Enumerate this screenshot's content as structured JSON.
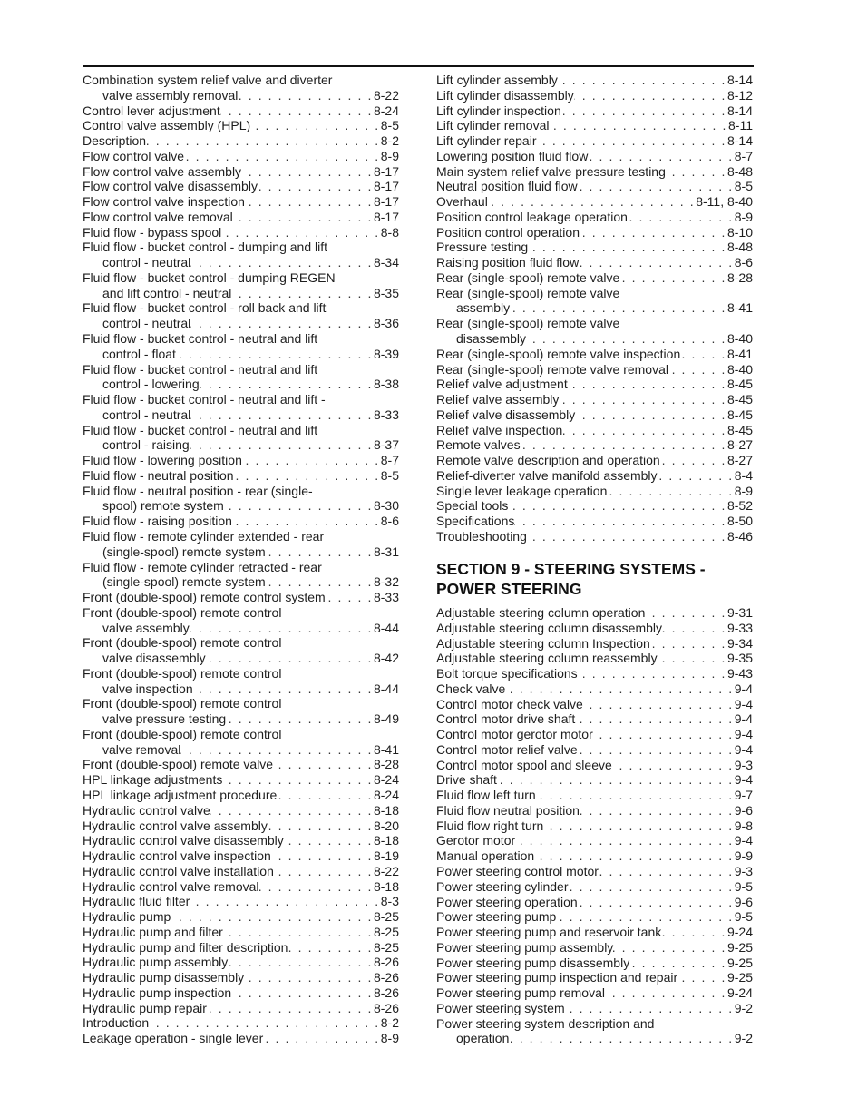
{
  "left": [
    {
      "text": "Combination system relief valve and diverter",
      "cont": "valve assembly removal",
      "page": "8-22"
    },
    {
      "text": "Control lever adjustment",
      "page": "8-24"
    },
    {
      "text": "Control valve assembly (HPL)",
      "page": "8-5"
    },
    {
      "text": "Description",
      "page": "8-2"
    },
    {
      "text": "Flow control valve",
      "page": "8-9"
    },
    {
      "text": "Flow control valve assembly",
      "page": "8-17"
    },
    {
      "text": "Flow control valve disassembly",
      "page": "8-17"
    },
    {
      "text": "Flow control valve inspection",
      "page": "8-17"
    },
    {
      "text": "Flow control valve removal",
      "page": "8-17"
    },
    {
      "text": "Fluid flow - bypass spool",
      "page": "8-8"
    },
    {
      "text": "Fluid flow - bucket control - dumping and lift",
      "cont": "control - neutral",
      "page": "8-34"
    },
    {
      "text": "Fluid flow - bucket control - dumping REGEN",
      "cont": "and lift control - neutral",
      "page": "8-35"
    },
    {
      "text": "Fluid flow - bucket control - roll back and lift",
      "cont": "control - neutral",
      "page": "8-36"
    },
    {
      "text": "Fluid flow - bucket control - neutral and lift",
      "cont": "control - float",
      "page": "8-39"
    },
    {
      "text": "Fluid flow - bucket control - neutral and lift",
      "cont": "control - lowering",
      "page": "8-38"
    },
    {
      "text": "Fluid flow - bucket control - neutral and lift -",
      "cont": "control - neutral",
      "page": "8-33"
    },
    {
      "text": "Fluid flow - bucket control - neutral and lift",
      "cont": "control - raising",
      "page": "8-37"
    },
    {
      "text": "Fluid flow - lowering position",
      "page": "8-7"
    },
    {
      "text": "Fluid flow - neutral position",
      "page": "8-5"
    },
    {
      "text": "Fluid flow - neutral position - rear (single-",
      "cont": "spool) remote system",
      "page": "8-30"
    },
    {
      "text": "Fluid flow - raising position",
      "page": "8-6"
    },
    {
      "text": "Fluid flow - remote cylinder extended - rear",
      "cont": "(single-spool) remote system",
      "page": "8-31"
    },
    {
      "text": "Fluid flow - remote cylinder retracted - rear",
      "cont": "(single-spool) remote system",
      "page": "8-32"
    },
    {
      "text": "Front (double-spool) remote control system",
      "page": "8-33"
    },
    {
      "text": "Front (double-spool) remote control",
      "cont": "valve assembly",
      "page": "8-44"
    },
    {
      "text": "Front (double-spool) remote control",
      "cont": "valve disassembly",
      "page": "8-42"
    },
    {
      "text": "Front (double-spool) remote control",
      "cont": "valve inspection",
      "page": "8-44"
    },
    {
      "text": "Front (double-spool) remote control",
      "cont": "valve pressure testing",
      "page": "8-49"
    },
    {
      "text": "Front (double-spool) remote control",
      "cont": "valve removal",
      "page": "8-41"
    },
    {
      "text": "Front (double-spool) remote valve",
      "page": "8-28"
    },
    {
      "text": "HPL linkage adjustments",
      "page": "8-24"
    },
    {
      "text": "HPL linkage adjustment procedure",
      "page": "8-24"
    },
    {
      "text": "Hydraulic control valve",
      "page": "8-18"
    },
    {
      "text": "Hydraulic control valve assembly",
      "page": "8-20"
    },
    {
      "text": "Hydraulic control valve disassembly",
      "page": "8-18"
    },
    {
      "text": "Hydraulic control valve inspection",
      "page": "8-19"
    },
    {
      "text": "Hydraulic control valve installation",
      "page": "8-22"
    },
    {
      "text": "Hydraulic control valve removal",
      "page": "8-18"
    },
    {
      "text": "Hydraulic fluid filter",
      "page": "8-3"
    },
    {
      "text": "Hydraulic pump",
      "page": "8-25"
    },
    {
      "text": "Hydraulic pump and filter",
      "page": "8-25"
    },
    {
      "text": "Hydraulic pump and filter description",
      "page": "8-25"
    },
    {
      "text": "Hydraulic pump assembly",
      "page": "8-26"
    },
    {
      "text": "Hydraulic pump disassembly",
      "page": "8-26"
    },
    {
      "text": "Hydraulic pump inspection",
      "page": "8-26"
    },
    {
      "text": "Hydraulic pump repair",
      "page": "8-26"
    },
    {
      "text": "Introduction",
      "page": "8-2"
    },
    {
      "text": "Leakage operation - single lever",
      "page": "8-9"
    }
  ],
  "right_top": [
    {
      "text": "Lift cylinder assembly",
      "page": "8-14"
    },
    {
      "text": "Lift cylinder disassembly",
      "page": "8-12"
    },
    {
      "text": "Lift cylinder inspection",
      "page": "8-14"
    },
    {
      "text": "Lift cylinder removal",
      "page": "8-11"
    },
    {
      "text": "Lift cylinder repair",
      "page": "8-14"
    },
    {
      "text": "Lowering position fluid flow",
      "page": "8-7"
    },
    {
      "text": "Main system relief valve pressure testing",
      "page": "8-48"
    },
    {
      "text": "Neutral position fluid flow",
      "page": "8-5"
    },
    {
      "text": "Overhaul",
      "page": "8-11, 8-40"
    },
    {
      "text": "Position control leakage operation",
      "page": "8-9"
    },
    {
      "text": "Position control operation",
      "page": "8-10"
    },
    {
      "text": "Pressure testing",
      "page": "8-48"
    },
    {
      "text": "Raising position fluid flow",
      "page": "8-6"
    },
    {
      "text": "Rear (single-spool) remote valve",
      "page": "8-28"
    },
    {
      "text": "Rear (single-spool) remote valve",
      "cont": "assembly",
      "page": "8-41"
    },
    {
      "text": "Rear (single-spool) remote valve",
      "cont": "disassembly",
      "page": "8-40"
    },
    {
      "text": "Rear (single-spool) remote valve inspection",
      "page": "8-41"
    },
    {
      "text": "Rear (single-spool) remote valve removal",
      "page": "8-40"
    },
    {
      "text": "Relief valve adjustment",
      "page": "8-45"
    },
    {
      "text": "Relief valve assembly",
      "page": "8-45"
    },
    {
      "text": "Relief valve disassembly",
      "page": "8-45"
    },
    {
      "text": "Relief valve inspection",
      "page": "8-45"
    },
    {
      "text": "Remote valves",
      "page": "8-27"
    },
    {
      "text": "Remote valve description and operation",
      "page": "8-27"
    },
    {
      "text": "Relief-diverter valve manifold assembly",
      "page": "8-4"
    },
    {
      "text": "Single lever leakage operation",
      "page": "8-9"
    },
    {
      "text": "Special tools",
      "page": "8-52"
    },
    {
      "text": "Specifications",
      "page": "8-50"
    },
    {
      "text": "Troubleshooting",
      "page": "8-46"
    }
  ],
  "section_heading": {
    "line1": "SECTION 9 - STEERING SYSTEMS -",
    "line2": "POWER STEERING"
  },
  "right_bottom": [
    {
      "text": "Adjustable steering column operation",
      "page": "9-31"
    },
    {
      "text": "Adjustable steering column disassembly",
      "page": "9-33"
    },
    {
      "text": "Adjustable steering column Inspection",
      "page": "9-34"
    },
    {
      "text": "Adjustable steering column reassembly",
      "page": "9-35"
    },
    {
      "text": "Bolt torque specifications",
      "page": "9-43"
    },
    {
      "text": "Check valve",
      "page": "9-4"
    },
    {
      "text": "Control motor check valve",
      "page": "9-4"
    },
    {
      "text": "Control motor drive shaft",
      "page": "9-4"
    },
    {
      "text": "Control motor gerotor motor",
      "page": "9-4"
    },
    {
      "text": "Control motor relief valve",
      "page": "9-4"
    },
    {
      "text": "Control motor spool and sleeve",
      "page": "9-3"
    },
    {
      "text": "Drive shaft",
      "page": "9-4"
    },
    {
      "text": "Fluid flow left turn",
      "page": "9-7"
    },
    {
      "text": "Fluid flow neutral position",
      "page": "9-6"
    },
    {
      "text": "Fluid flow right turn",
      "page": "9-8"
    },
    {
      "text": "Gerotor motor",
      "page": "9-4"
    },
    {
      "text": "Manual operation",
      "page": "9-9"
    },
    {
      "text": "Power steering control motor",
      "page": "9-3"
    },
    {
      "text": "Power steering cylinder",
      "page": "9-5"
    },
    {
      "text": "Power steering operation",
      "page": "9-6"
    },
    {
      "text": "Power steering pump",
      "page": "9-5"
    },
    {
      "text": "Power steering pump and reservoir tank",
      "page": "9-24"
    },
    {
      "text": "Power steering pump assembly",
      "page": "9-25"
    },
    {
      "text": "Power steering pump disassembly",
      "page": "9-25"
    },
    {
      "text": "Power steering pump inspection and repair",
      "page": "9-25"
    },
    {
      "text": "Power steering pump removal",
      "page": "9-24"
    },
    {
      "text": "Power steering system",
      "page": "9-2"
    },
    {
      "text": "Power steering system description and",
      "cont": "operation",
      "page": "9-2"
    }
  ]
}
